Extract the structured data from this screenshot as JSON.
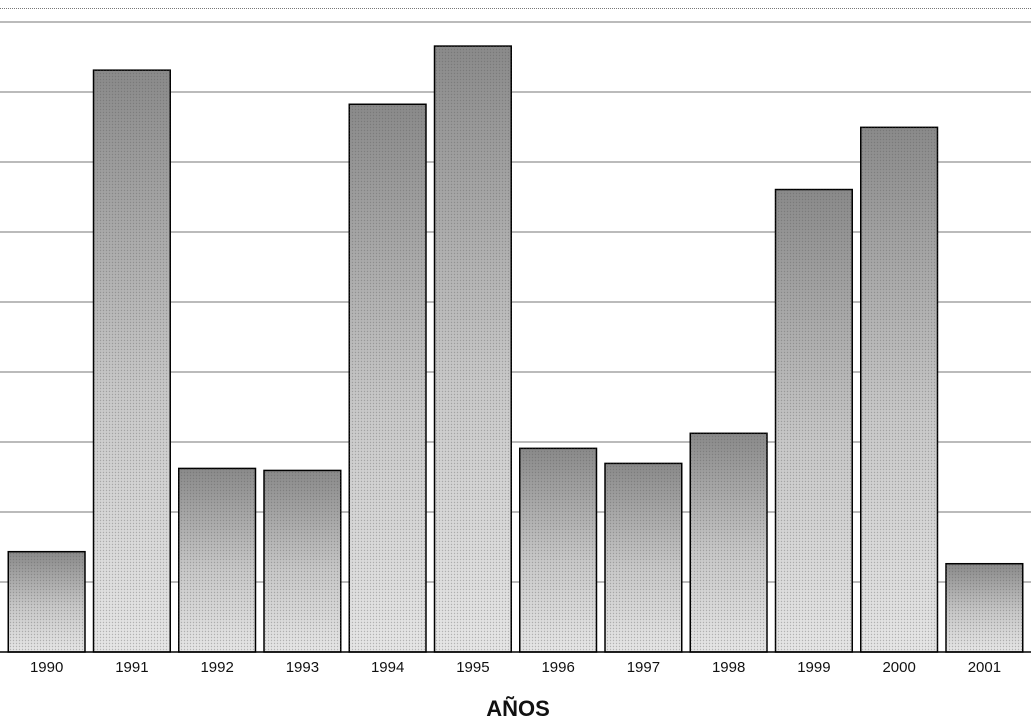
{
  "chart_data": {
    "type": "bar",
    "categories": [
      "1990",
      "1991",
      "1992",
      "1993",
      "1994",
      "1995",
      "1996",
      "1997",
      "1998",
      "1999",
      "2000",
      "2001"
    ],
    "values": [
      100,
      580,
      183,
      181,
      546,
      604,
      203,
      188,
      218,
      461,
      523,
      88
    ],
    "ylim": [
      0,
      630
    ],
    "xlabel": "AÑOS",
    "grid": true,
    "colors": {
      "bar_fill_dark": "#8a8a8a",
      "bar_fill_light": "#e2e2e2",
      "bar_stroke": "#000000",
      "grid": "#777777"
    }
  }
}
